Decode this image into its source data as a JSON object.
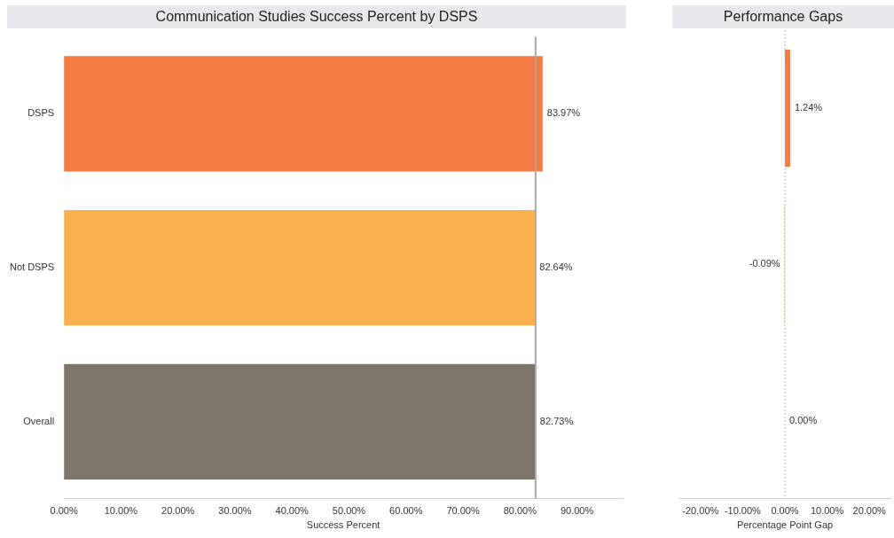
{
  "chart_data": [
    {
      "type": "bar",
      "orientation": "horizontal",
      "title": "Communication Studies Success Percent by DSPS",
      "xlabel": "Success Percent",
      "categories": [
        "DSPS",
        "Not DSPS",
        "Overall"
      ],
      "values": [
        83.97,
        82.64,
        82.73
      ],
      "colors": [
        "#f47b42",
        "#f8b04e",
        "#7d746a"
      ],
      "value_labels": [
        "83.97%",
        "82.64%",
        "82.73%"
      ],
      "xlim": [
        0,
        98
      ],
      "xticks": [
        {
          "value": 0,
          "label": "0.00%"
        },
        {
          "value": 10,
          "label": "10.00%"
        },
        {
          "value": 20,
          "label": "20.00%"
        },
        {
          "value": 30,
          "label": "30.00%"
        },
        {
          "value": 40,
          "label": "40.00%"
        },
        {
          "value": 50,
          "label": "50.00%"
        },
        {
          "value": 60,
          "label": "60.00%"
        },
        {
          "value": 70,
          "label": "70.00%"
        },
        {
          "value": 80,
          "label": "80.00%"
        },
        {
          "value": 90,
          "label": "90.00%"
        }
      ],
      "ref_lines": [
        {
          "axis": "x",
          "value": 82.73,
          "color": "#a8a8a8",
          "line_style": "solid"
        }
      ],
      "grid": false,
      "legend": false
    },
    {
      "type": "bar",
      "orientation": "horizontal",
      "title": "Performance Gaps",
      "xlabel": "Percentage Point Gap",
      "categories": [
        null,
        null,
        null
      ],
      "values": [
        1.24,
        -0.09,
        0
      ],
      "colors": [
        "#f47b42",
        "#f8b04e",
        "#7d746a"
      ],
      "value_labels": [
        "1.24%",
        "-0.09%",
        "0.00%"
      ],
      "xlim": [
        -25,
        25
      ],
      "xticks": [
        {
          "value": -20,
          "label": "-20.00%"
        },
        {
          "value": -10,
          "label": "-10.00%"
        },
        {
          "value": 0,
          "label": "0.00%"
        },
        {
          "value": 10,
          "label": "10.00%"
        },
        {
          "value": 20,
          "label": "20.00%"
        }
      ],
      "ref_lines": [
        {
          "axis": "x",
          "value": 0,
          "color": "#bbbbbb",
          "line_style": "dotted"
        }
      ],
      "grid": false,
      "legend": false,
      "tick_labels": "x"
    }
  ]
}
